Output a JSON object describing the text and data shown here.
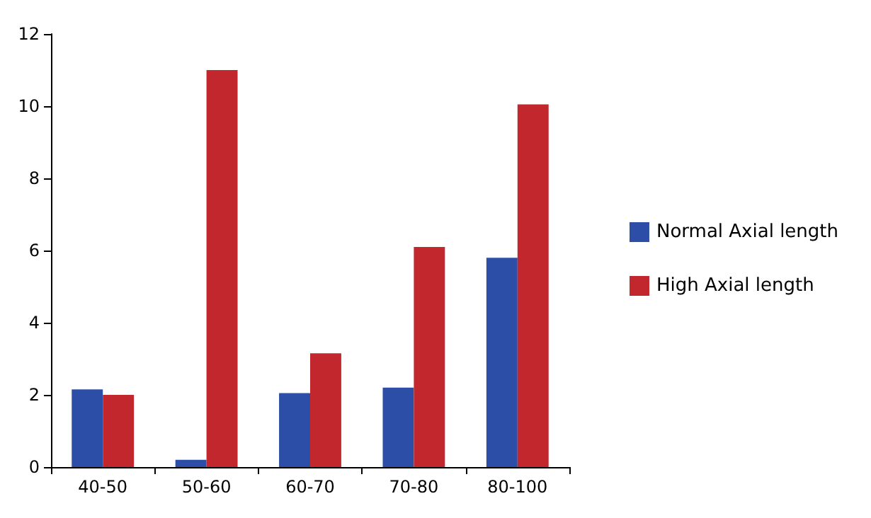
{
  "chart_data": {
    "type": "bar",
    "categories": [
      "40-50",
      "50-60",
      "60-70",
      "70-80",
      "80-100"
    ],
    "series": [
      {
        "name": "Normal Axial length",
        "color": "#2d4ea6",
        "values": [
          2.15,
          0.2,
          2.05,
          2.2,
          5.8
        ]
      },
      {
        "name": "High Axial length",
        "color": "#c1272d",
        "values": [
          2.0,
          11.0,
          3.15,
          6.1,
          10.05
        ]
      }
    ],
    "ylim": [
      0,
      12
    ],
    "yticks": [
      0,
      2,
      4,
      6,
      8,
      10,
      12
    ],
    "grid": false,
    "legend": "right"
  }
}
